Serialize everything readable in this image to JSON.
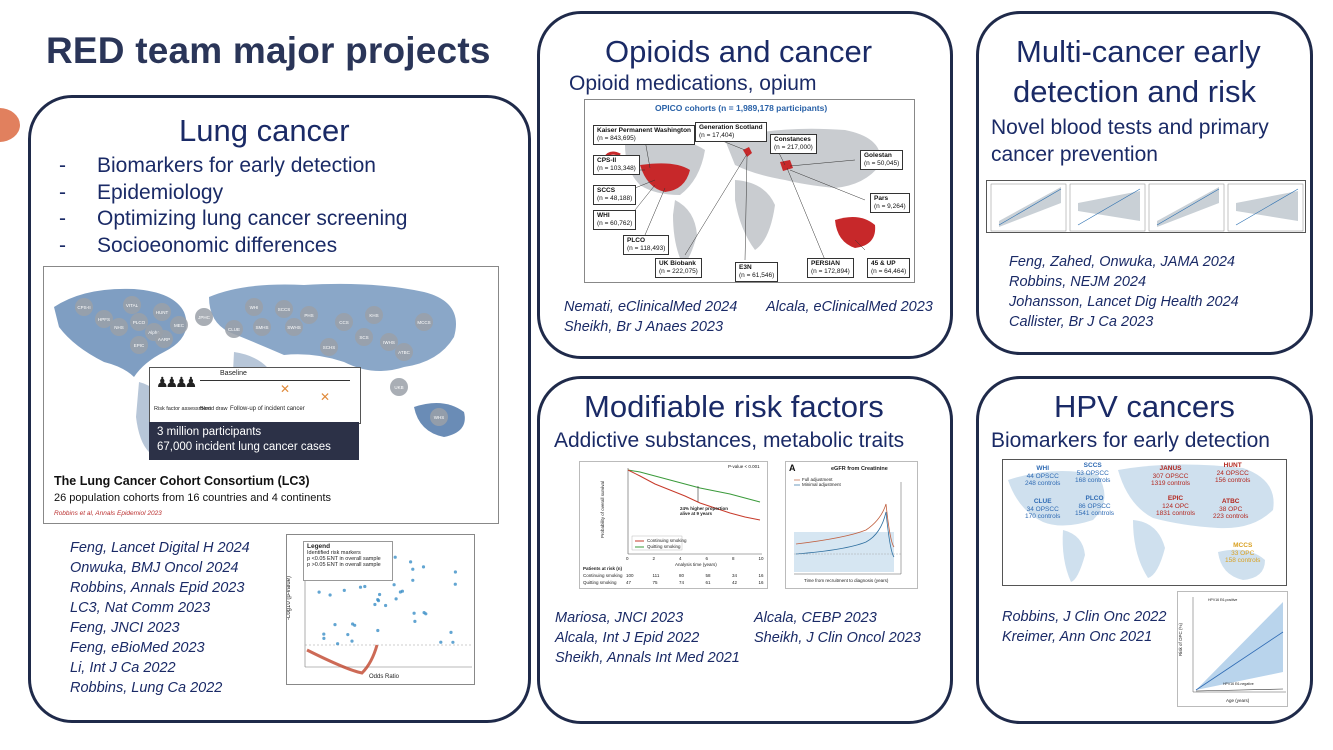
{
  "title": "RED team major projects",
  "lung": {
    "title": "Lung cancer",
    "bullets": [
      "Biomarkers for early detection",
      "Epidemiology",
      "Optimizing lung cancer screening",
      "Socioeonomic differences"
    ],
    "figure": {
      "cohorts": [
        "CPS-II",
        "VITAL",
        "HUNT",
        "PLCO",
        "Alpha",
        "NHS",
        "MEC",
        "AARP",
        "HPFS",
        "EPIC",
        "JPHC",
        "WHI",
        "SCCS",
        "CLUE",
        "SMHS",
        "SWHS",
        "CCS",
        "SCS",
        "IWHS",
        "MCCS",
        "ATBC",
        "SCHS",
        "PHS",
        "KHS",
        "WHS",
        "UKB"
      ],
      "baseline": "Baseline",
      "risk_factor": "Risk factor assessment",
      "blood_draw": "Blood draw",
      "follow_up": "Follow-up of incident cancer",
      "stat1": "3 million participants",
      "stat2": "67,000 incident lung cancer cases",
      "consortium": "The Lung Cancer Cohort Consortium (LC3)",
      "consortium_sub": "26 population cohorts from 16 countries and 4 continents",
      "citation": "Robbins et al, Annals Epidemiol 2023"
    },
    "volcano": {
      "legend_title": "Legend",
      "legend_items": [
        "Identified risk markers",
        "p <0.05 ENT in overall sample",
        "p >0.05 ENT in overall sample"
      ],
      "xlabel": "Odds Ratio",
      "ylabel": "-Log10 (p-value)"
    },
    "refs": [
      "Feng, Lancet Digital H 2024",
      "Onwuka, BMJ Oncol 2024",
      "Robbins, Annals Epid 2023",
      "LC3, Nat Comm 2023",
      "Feng, JNCI 2023",
      "Feng, eBioMed 2023",
      "Li, Int J Ca 2022",
      "Robbins, Lung Ca 2022"
    ]
  },
  "opioids": {
    "title": "Opioids and cancer",
    "subtitle": "Opioid medications, opium",
    "figure": {
      "header": "OPICO cohorts (n = 1,989,178 participants)",
      "boxes": [
        {
          "name": "Kaiser Permanent Washington",
          "n": "(n = 843,695)"
        },
        {
          "name": "Generation Scotland",
          "n": "(n = 17,404)"
        },
        {
          "name": "Constances",
          "n": "(n = 217,000)"
        },
        {
          "name": "CPS-II",
          "n": "(n = 103,348)"
        },
        {
          "name": "Golestan",
          "n": "(n = 50,045)"
        },
        {
          "name": "SCCS",
          "n": "(n = 48,188)"
        },
        {
          "name": "Pars",
          "n": "(n = 9,264)"
        },
        {
          "name": "WHI",
          "n": "(n = 60,762)"
        },
        {
          "name": "PLCO",
          "n": "(n = 118,493)"
        },
        {
          "name": "UK Biobank",
          "n": "(n = 222,075)"
        },
        {
          "name": "E3N",
          "n": "(n = 61,546)"
        },
        {
          "name": "PERSIAN",
          "n": "(n = 172,894)"
        },
        {
          "name": "45 & UP",
          "n": "(n = 64,464)"
        }
      ]
    },
    "refs_left": [
      "Nemati, eClinicalMed 2024",
      "Sheikh, Br J Anaes 2023"
    ],
    "refs_right": [
      "Alcala, eClinicalMed 2023"
    ]
  },
  "multicancer": {
    "title_line1": "Multi-cancer early",
    "title_line2": "detection and risk",
    "subtitle_line1": "Novel blood tests and primary",
    "subtitle_line2": "cancer prevention",
    "refs": [
      "Feng, Zahed, Onwuka, JAMA 2024",
      "Robbins, NEJM 2024",
      "Johansson, Lancet Dig Health 2024",
      "Callister, Br J Ca 2023"
    ]
  },
  "modifiable": {
    "title": "Modifiable risk factors",
    "subtitle": "Addictive substances, metabolic traits",
    "survival": {
      "pvalue": "P-value < 0.001",
      "annotation": "24% higher proportion alive at 9 years",
      "ylabel": "Probability of overall survival",
      "xlabel": "Analysis time (years)",
      "legend": [
        "Continuing smoking",
        "Quitting smoking"
      ],
      "risk_header": "Patients at risk (n)",
      "risk_rows": [
        {
          "label": "Continuing smoking",
          "values": [
            "100",
            "111",
            "80",
            "58",
            "34",
            "16"
          ]
        },
        {
          "label": "Quitting smoking",
          "values": [
            "47",
            "75",
            "74",
            "61",
            "42",
            "16"
          ]
        }
      ],
      "x_ticks": [
        "0",
        "2",
        "4",
        "6",
        "8",
        "10"
      ],
      "y_ticks": [
        "1.00",
        "0.75",
        "0.50",
        "0.25",
        "0"
      ]
    },
    "egfr": {
      "panel": "A",
      "title": "eGFR from Creatinine",
      "legend": [
        "Full adjustment",
        "Minimal adjustment"
      ],
      "xlabel": "Time from recruitment to diagnosis (years)"
    },
    "refs_left": [
      "Mariosa, JNCI 2023",
      "Alcala, Int J Epid 2022",
      "Sheikh, Annals Int Med 2021"
    ],
    "refs_right": [
      "Alcala, CEBP 2023",
      "Sheikh, J Clin Oncol 2023"
    ]
  },
  "hpv": {
    "title": "HPV cancers",
    "subtitle": "Biomarkers for early detection",
    "map": [
      {
        "name": "WHI",
        "l1": "44 OPSCC",
        "l2": "248 controls",
        "color": "#2f6bb4"
      },
      {
        "name": "SCCS",
        "l1": "53 OPSCC",
        "l2": "168 controls",
        "color": "#2f6bb4"
      },
      {
        "name": "JANUS",
        "l1": "307 OPSCC",
        "l2": "1319 controls",
        "color": "#b3271f"
      },
      {
        "name": "HUNT",
        "l1": "24 OPSCC",
        "l2": "156 controls",
        "color": "#b3271f"
      },
      {
        "name": "CLUE",
        "l1": "34 OPSCC",
        "l2": "170 controls",
        "color": "#2f6bb4"
      },
      {
        "name": "PLCO",
        "l1": "86 OPSCC",
        "l2": "1541 controls",
        "color": "#2f6bb4"
      },
      {
        "name": "EPIC",
        "l1": "124 OPC",
        "l2": "1831 controls",
        "color": "#b3271f"
      },
      {
        "name": "ATBC",
        "l1": "38 OPC",
        "l2": "223 controls",
        "color": "#b3271f"
      },
      {
        "name": "MCCS",
        "l1": "33 OPC",
        "l2": "158 controls",
        "color": "#d9a020"
      }
    ],
    "risk_plot": {
      "ylabel": "Risk of OPC (%)",
      "xlabel": "Age (years)",
      "labels": [
        "HPV16 E6-positive",
        "HPV16 E6-negative"
      ]
    },
    "refs": [
      "Robbins, J Clin Onc 2022",
      "Kreimer, Ann Onc 2021"
    ]
  },
  "colors": {
    "navy": "#1f2a4a",
    "title_blue": "#1a2a66",
    "accent_orange": "#e1805e",
    "map_blue": "#2f6bb4",
    "map_red": "#b3271f"
  }
}
